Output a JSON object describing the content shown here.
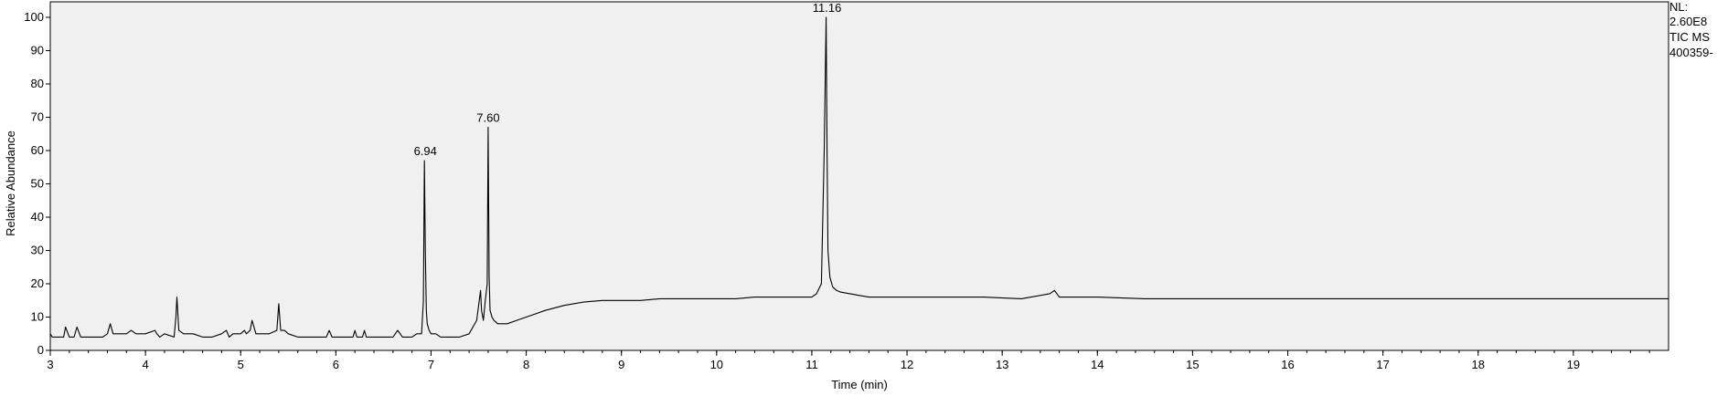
{
  "chart_data": {
    "type": "line",
    "title": "",
    "xlabel": "Time (min)",
    "ylabel": "Relative Abundance",
    "xlim": [
      3,
      20
    ],
    "ylim": [
      0,
      100
    ],
    "xticks": [
      3,
      4,
      5,
      6,
      7,
      8,
      9,
      10,
      11,
      12,
      13,
      14,
      15,
      16,
      17,
      18,
      19
    ],
    "yticks": [
      0,
      10,
      20,
      30,
      40,
      50,
      60,
      70,
      80,
      90,
      100
    ],
    "grid": false,
    "info_lines": [
      "NL:",
      "2.60E8",
      "TIC  MS",
      "400359-"
    ],
    "peak_labels": [
      {
        "text": "6.94",
        "x": 6.94,
        "y": 57
      },
      {
        "text": "7.60",
        "x": 7.6,
        "y": 67
      },
      {
        "text": "11.16",
        "x": 11.16,
        "y": 100
      }
    ],
    "series": [
      {
        "color": "#000000",
        "x": [
          3.0,
          3.02,
          3.05,
          3.1,
          3.14,
          3.16,
          3.2,
          3.25,
          3.28,
          3.32,
          3.4,
          3.5,
          3.55,
          3.6,
          3.63,
          3.66,
          3.7,
          3.8,
          3.85,
          3.9,
          4.0,
          4.1,
          4.12,
          4.15,
          4.2,
          4.3,
          4.32,
          4.33,
          4.35,
          4.4,
          4.5,
          4.6,
          4.7,
          4.8,
          4.85,
          4.88,
          4.92,
          5.0,
          5.04,
          5.06,
          5.1,
          5.12,
          5.16,
          5.2,
          5.3,
          5.38,
          5.4,
          5.42,
          5.46,
          5.5,
          5.6,
          5.7,
          5.8,
          5.9,
          5.93,
          5.96,
          6.0,
          6.1,
          6.18,
          6.2,
          6.22,
          6.28,
          6.3,
          6.32,
          6.4,
          6.5,
          6.6,
          6.65,
          6.7,
          6.8,
          6.85,
          6.9,
          6.92,
          6.93,
          6.94,
          6.95,
          6.96,
          6.98,
          7.0,
          7.05,
          7.1,
          7.2,
          7.3,
          7.4,
          7.48,
          7.52,
          7.53,
          7.55,
          7.57,
          7.59,
          7.6,
          7.61,
          7.62,
          7.64,
          7.66,
          7.7,
          7.75,
          7.8,
          7.9,
          8.0,
          8.1,
          8.2,
          8.4,
          8.6,
          8.8,
          9.0,
          9.2,
          9.4,
          9.6,
          9.8,
          10.0,
          10.2,
          10.4,
          10.6,
          10.8,
          11.0,
          11.05,
          11.1,
          11.13,
          11.15,
          11.16,
          11.17,
          11.19,
          11.22,
          11.26,
          11.3,
          11.4,
          11.5,
          11.6,
          11.8,
          12.0,
          12.4,
          12.8,
          13.2,
          13.5,
          13.55,
          13.6,
          13.65,
          13.7,
          13.8,
          14.0,
          14.5,
          15.0,
          15.5,
          16.0,
          16.5,
          17.0,
          17.5,
          18.0,
          18.5,
          19.0,
          19.5,
          20.0
        ],
        "y": [
          5,
          4,
          4,
          4,
          4,
          7,
          4,
          4,
          7,
          4,
          4,
          4,
          4,
          5,
          8,
          5,
          5,
          5,
          6,
          5,
          5,
          6,
          5,
          4,
          5,
          4,
          10,
          16,
          6,
          5,
          5,
          4,
          4,
          5,
          6,
          4,
          5,
          5,
          6,
          5,
          6,
          9,
          5,
          5,
          5,
          6,
          14,
          6,
          6,
          5,
          4,
          4,
          4,
          4,
          6,
          4,
          4,
          4,
          4,
          6,
          4,
          4,
          6,
          4,
          4,
          4,
          4,
          6,
          4,
          4,
          5,
          5,
          15,
          57,
          30,
          12,
          8,
          6,
          5,
          5,
          4,
          4,
          4,
          5,
          9,
          18,
          12,
          9,
          15,
          20,
          67,
          22,
          12,
          10,
          9,
          8,
          8,
          8,
          9,
          10,
          11,
          12,
          13.5,
          14.5,
          15,
          15,
          15,
          15.5,
          15.5,
          15.5,
          15.5,
          15.5,
          16,
          16,
          16,
          16,
          17,
          20,
          60,
          100,
          60,
          30,
          22,
          19,
          18,
          17.5,
          17,
          16.5,
          16,
          16,
          16,
          16,
          16,
          15.5,
          17,
          18,
          16,
          16,
          16,
          16,
          16,
          15.5,
          15.5,
          15.5,
          15.5,
          15.5,
          15.5,
          15.5,
          15.5,
          15.5,
          15.5,
          15.5,
          15.5
        ]
      }
    ]
  }
}
